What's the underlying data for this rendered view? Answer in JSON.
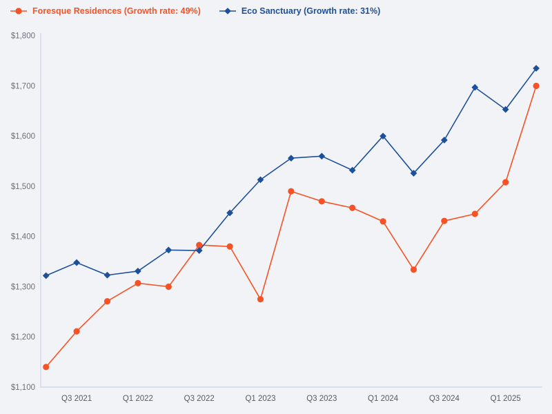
{
  "colors": {
    "background": "#f1f3f6",
    "axis_line": "#c8d3e8",
    "ytick_text": "#6a707a",
    "xtick_text": "#565b63",
    "series_orange": "#f55327",
    "series_blue": "#1e4f9b"
  },
  "chart_data": {
    "type": "line",
    "title": "",
    "xlabel": "",
    "ylabel": "",
    "ylim": [
      1100,
      1800
    ],
    "grid": "off",
    "legend_position": "top-left",
    "categories": [
      "Q2 2021",
      "Q3 2021",
      "Q4 2021",
      "Q1 2022",
      "Q2 2022",
      "Q3 2022",
      "Q4 2022",
      "Q1 2023",
      "Q2 2023",
      "Q3 2023",
      "Q4 2023",
      "Q1 2024",
      "Q2 2024",
      "Q3 2024",
      "Q4 2024",
      "Q1 2025",
      "Q2 2025"
    ],
    "xticks": {
      "labels": [
        "Q3 2021",
        "Q1 2022",
        "Q3 2022",
        "Q1 2023",
        "Q3 2023",
        "Q1 2024",
        "Q3 2024",
        "Q1 2025"
      ],
      "category_indices": [
        1,
        3,
        5,
        7,
        9,
        11,
        13,
        15
      ]
    },
    "yticks": {
      "values": [
        1100,
        1200,
        1300,
        1400,
        1500,
        1600,
        1700,
        1800
      ],
      "labels": [
        "$1,100",
        "$1,200",
        "$1,300",
        "$1,400",
        "$1,500",
        "$1,600",
        "$1,700",
        "$1,800"
      ]
    },
    "series": [
      {
        "id": "foresque-residences",
        "name": "Foresque Residences",
        "growth_rate": "49%",
        "legend_label": "Foresque Residences (Growth rate: 49%)",
        "color": "#f55327",
        "marker": "circle",
        "values": [
          1140,
          1211,
          1271,
          1307,
          1300,
          1383,
          1380,
          1275,
          1490,
          1470,
          1457,
          1430,
          1334,
          1431,
          1445,
          1508,
          1700
        ]
      },
      {
        "id": "eco-sanctuary",
        "name": "Eco Sanctuary",
        "growth_rate": "31%",
        "legend_label": "Eco Sanctuary (Growth rate: 31%)",
        "color": "#1e4f9b",
        "marker": "diamond",
        "values": [
          1322,
          1348,
          1323,
          1331,
          1373,
          1372,
          1447,
          1513,
          1556,
          1560,
          1532,
          1600,
          1526,
          1592,
          1697,
          1653,
          1735
        ]
      }
    ]
  }
}
